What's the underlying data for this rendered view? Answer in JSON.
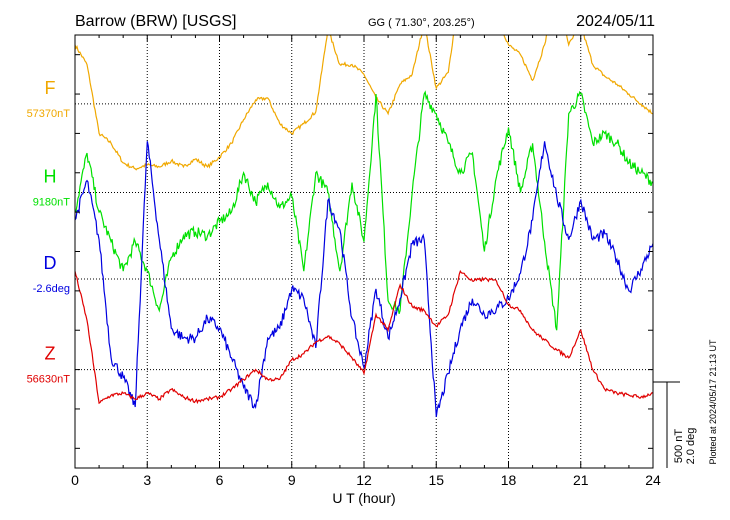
{
  "header": {
    "station": "Barrow (BRW)  [USGS]",
    "coords": "GG ( 71.30°, 203.25°)",
    "date": "2024/05/11"
  },
  "footer": {
    "plotted_note": "Plotted at 2024/05/17 21:13 UT",
    "scale_nt": "500 nT",
    "scale_deg": "2.0 deg"
  },
  "chart_data": {
    "type": "line",
    "title": "Barrow (BRW)  [USGS]",
    "xlabel": "U T (hour)",
    "ylabel": "",
    "xlim": [
      0,
      24
    ],
    "xticks": [
      0,
      3,
      6,
      9,
      12,
      15,
      18,
      21,
      24
    ],
    "x_tick_labels": [
      "0",
      "3",
      "6",
      "9",
      "12",
      "15",
      "18",
      "21",
      "24"
    ],
    "y_units": "nT",
    "ylim": [
      -1100,
      1100
    ],
    "grid": true,
    "series": [
      {
        "name": "F",
        "baseline_label": "57370nT",
        "color": "#f0a800",
        "baseline_offset": 750,
        "x": [
          0,
          0.5,
          1,
          1.5,
          2,
          2.5,
          3,
          3.5,
          4,
          4.5,
          5,
          5.5,
          6,
          6.5,
          7,
          7.5,
          8,
          8.5,
          9,
          9.5,
          10,
          10.5,
          11,
          11.5,
          12,
          12.5,
          13,
          13.5,
          14,
          14.5,
          15,
          15.5,
          16,
          16.5,
          17,
          17.5,
          18,
          18.5,
          19,
          19.5,
          20,
          20.5,
          21,
          21.5,
          22,
          22.5,
          23,
          23.5,
          24
        ],
        "y": [
          300,
          200,
          -150,
          -200,
          -300,
          -330,
          -310,
          -320,
          -290,
          -320,
          -280,
          -320,
          -270,
          -200,
          -80,
          20,
          30,
          -100,
          -150,
          -100,
          -40,
          380,
          200,
          200,
          150,
          30,
          -50,
          100,
          150,
          410,
          80,
          160,
          600,
          580,
          520,
          450,
          300,
          250,
          120,
          300,
          600,
          300,
          400,
          200,
          140,
          100,
          50,
          0,
          -50
        ]
      },
      {
        "name": "H",
        "baseline_label": "9180nT",
        "color": "#00e000",
        "baseline_offset": 300,
        "x": [
          0,
          0.5,
          1,
          1.5,
          2,
          2.5,
          3,
          3.5,
          4,
          4.5,
          5,
          5.5,
          6,
          6.5,
          7,
          7.5,
          8,
          8.5,
          9,
          9.5,
          10,
          10.5,
          11,
          11.5,
          12,
          12.5,
          13,
          13.5,
          14,
          14.5,
          15,
          15.5,
          16,
          16.5,
          17,
          17.5,
          18,
          18.5,
          19,
          19.5,
          20,
          20.5,
          21,
          21.5,
          22,
          22.5,
          23,
          23.5,
          24
        ],
        "y": [
          -100,
          200,
          -100,
          -250,
          -400,
          -250,
          -400,
          -600,
          -330,
          -220,
          -200,
          -220,
          -150,
          -100,
          100,
          -50,
          50,
          -80,
          -20,
          -400,
          100,
          0,
          -400,
          50,
          -250,
          500,
          -550,
          -600,
          0,
          500,
          400,
          250,
          100,
          200,
          -300,
          80,
          330,
          0,
          250,
          -250,
          -700,
          400,
          500,
          250,
          300,
          250,
          150,
          100,
          50
        ]
      },
      {
        "name": "D",
        "baseline_label": "-2.6deg",
        "color": "#0000e0",
        "baseline_offset": -140,
        "x": [
          0,
          0.5,
          1,
          1.5,
          2,
          2.5,
          3,
          3.5,
          4,
          4.5,
          5,
          5.5,
          6,
          6.5,
          7,
          7.5,
          8,
          8.5,
          9,
          9.5,
          10,
          10.5,
          11,
          11.5,
          12,
          12.5,
          13,
          13.5,
          14,
          14.5,
          15,
          15.5,
          16,
          16.5,
          17,
          17.5,
          18,
          18.5,
          19,
          19.5,
          20,
          20.5,
          21,
          21.5,
          22,
          22.5,
          23,
          23.5,
          24
        ],
        "y": [
          300,
          500,
          200,
          -400,
          -500,
          -650,
          700,
          200,
          -250,
          -300,
          -300,
          -200,
          -250,
          -400,
          -550,
          -650,
          -300,
          -250,
          -50,
          -100,
          -350,
          400,
          250,
          -200,
          -450,
          -50,
          -300,
          -100,
          180,
          200,
          -700,
          -480,
          -250,
          -100,
          -180,
          -150,
          -100,
          30,
          300,
          700,
          420,
          200,
          400,
          200,
          230,
          100,
          -60,
          50,
          180
        ]
      },
      {
        "name": "Z",
        "baseline_label": "56630nT",
        "color": "#e00000",
        "baseline_offset": -600,
        "x": [
          0,
          0.5,
          1,
          1.5,
          2,
          2.5,
          3,
          3.5,
          4,
          4.5,
          5,
          5.5,
          6,
          6.5,
          7,
          7.5,
          8,
          8.5,
          9,
          9.5,
          10,
          10.5,
          11,
          11.5,
          12,
          12.5,
          13,
          13.5,
          14,
          14.5,
          15,
          15.5,
          16,
          16.5,
          17,
          17.5,
          18,
          18.5,
          19,
          19.5,
          20,
          20.5,
          21,
          21.5,
          22,
          22.5,
          23,
          23.5,
          24
        ],
        "y": [
          500,
          250,
          -170,
          -130,
          -120,
          -150,
          -120,
          -150,
          -100,
          -140,
          -160,
          -150,
          -140,
          -100,
          -50,
          0,
          -50,
          -50,
          50,
          80,
          140,
          170,
          130,
          60,
          -20,
          280,
          200,
          430,
          320,
          300,
          220,
          280,
          500,
          450,
          460,
          450,
          330,
          300,
          200,
          150,
          100,
          60,
          200,
          0,
          -100,
          -120,
          -130,
          -140,
          -120
        ]
      }
    ],
    "scale_bar": {
      "value_nt": 500,
      "value_deg": 2.0
    }
  }
}
